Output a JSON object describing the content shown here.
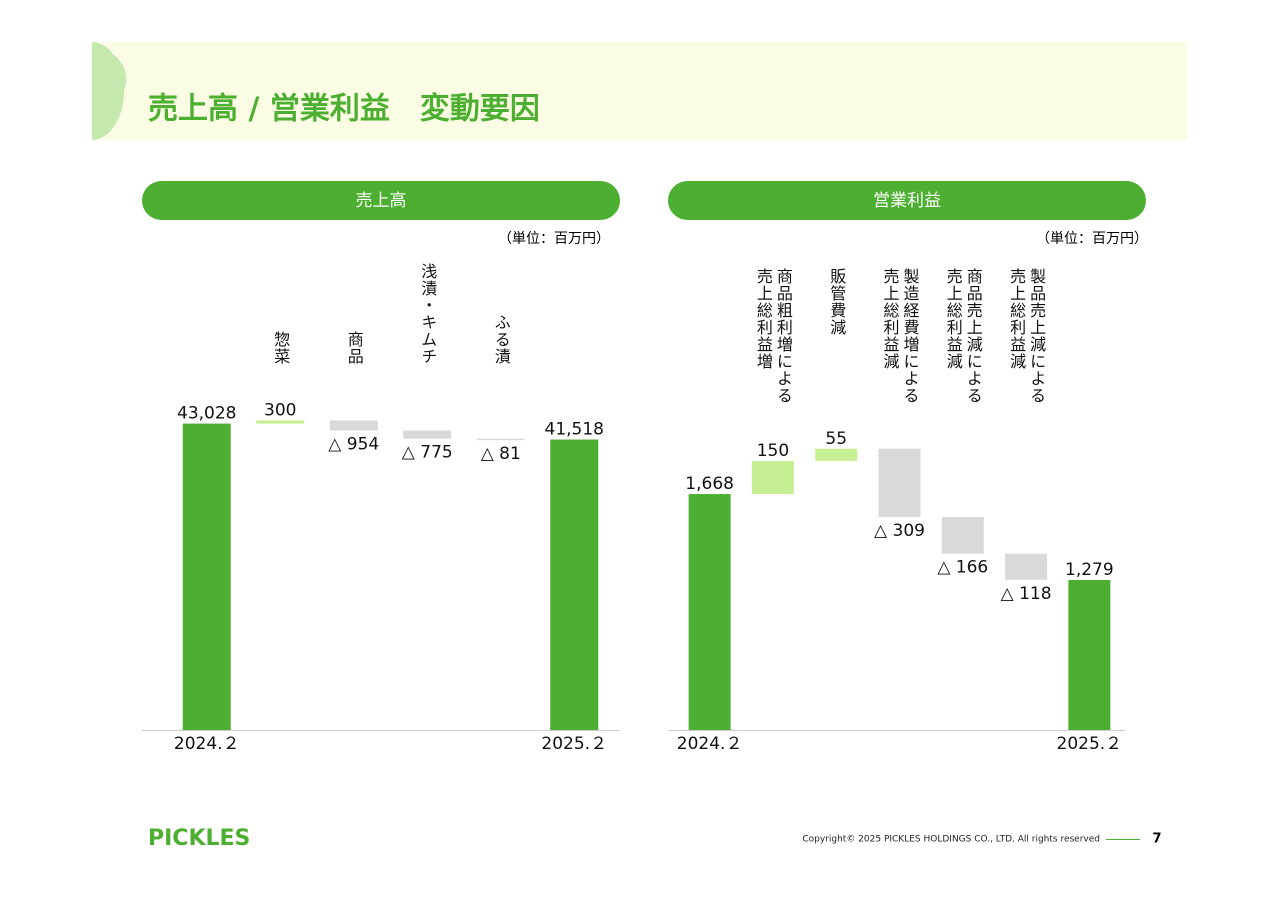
{
  "header": {
    "title": "売上高 / 営業利益　変動要因"
  },
  "chart_data": [
    {
      "type": "waterfall",
      "title": "売上高",
      "unit": "（単位：百万円）",
      "categories": [
        "2024.２",
        "惣菜",
        "商品",
        "浅漬・キムチ",
        "ふる漬",
        "2025.２"
      ],
      "values": [
        43028,
        300,
        -954,
        -775,
        -81,
        41518
      ],
      "value_labels": [
        "43,028",
        "300",
        "△ 954",
        "△ 775",
        "△ 81",
        "41,518"
      ],
      "totals": [
        true,
        false,
        false,
        false,
        false,
        true
      ],
      "colors": {
        "total": "#4daf31",
        "increase": "#c6ef94",
        "decrease": "#d9d9d9"
      },
      "ylim": [
        14000,
        59000
      ]
    },
    {
      "type": "waterfall",
      "title": "営業利益",
      "unit": "（単位：百万円）",
      "categories": [
        "2024.２",
        "商品粗利増による売上総利益増",
        "販管費減",
        "製造経費増による売上総利益減",
        "商品売上減による売上総利益減",
        "製品売上減による売上総利益減",
        "2025.２"
      ],
      "values": [
        1668,
        150,
        55,
        -309,
        -166,
        -118,
        1279
      ],
      "value_labels": [
        "1,668",
        "150",
        "55",
        "△ 309",
        "△ 166",
        "△ 118",
        "1,279"
      ],
      "totals": [
        true,
        false,
        false,
        false,
        false,
        false,
        true
      ],
      "colors": {
        "total": "#4daf31",
        "increase": "#c6ef94",
        "decrease": "#d9d9d9"
      },
      "ylim": [
        600,
        2750
      ]
    }
  ],
  "footer": {
    "logo": "PICKLES",
    "copyright": "Copyright© 2025 PICKLES HOLDINGS CO., LTD. All rights reserved",
    "page": "7"
  }
}
